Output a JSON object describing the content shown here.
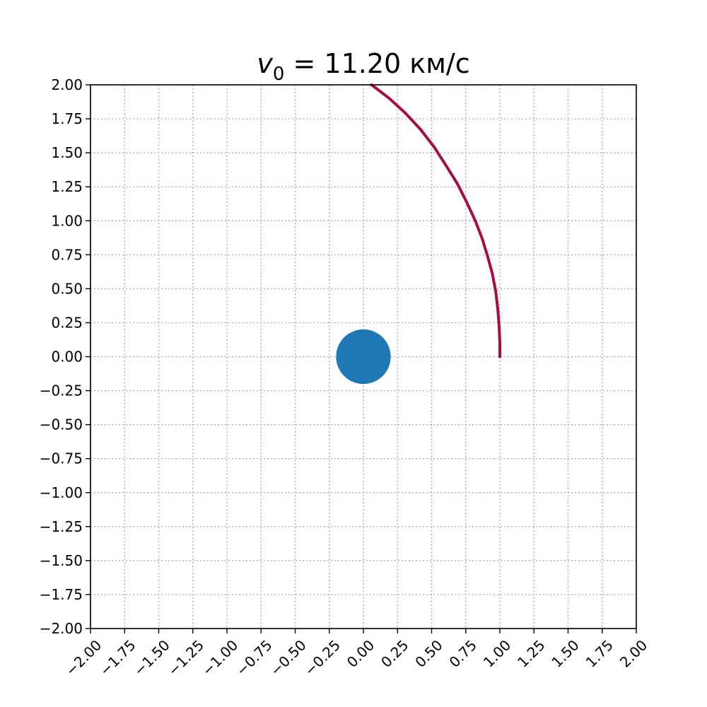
{
  "chart_data": {
    "type": "scatter",
    "title": {
      "symbol": "v",
      "subscript": "0",
      "rest": " = 11.20 км/с"
    },
    "xlabel": "",
    "ylabel": "",
    "xlim": [
      -2.0,
      2.0
    ],
    "ylim": [
      -2.0,
      2.0
    ],
    "xticks": [
      "−2.00",
      "−1.75",
      "−1.50",
      "−1.25",
      "−1.00",
      "−0.75",
      "−0.50",
      "−0.25",
      "0.00",
      "0.25",
      "0.50",
      "0.75",
      "1.00",
      "1.25",
      "1.50",
      "1.75",
      "2.00"
    ],
    "yticks": [
      "2.00",
      "1.75",
      "1.50",
      "1.25",
      "1.00",
      "0.75",
      "0.50",
      "0.25",
      "0.00",
      "−0.25",
      "−0.50",
      "−0.75",
      "−1.00",
      "−1.25",
      "−1.50",
      "−1.75",
      "−2.00"
    ],
    "grid": true,
    "planet": {
      "x": 0.0,
      "y": 0.0,
      "radius": 0.2,
      "color": "#1f77b4"
    },
    "series": [
      {
        "color": "#a50f3c",
        "x": [
          1.0,
          1.0,
          0.995,
          0.985,
          0.97,
          0.945,
          0.91,
          0.87,
          0.82,
          0.76,
          0.69,
          0.61,
          0.52,
          0.42,
          0.31,
          0.19,
          0.06
        ],
        "y": [
          0.0,
          0.1,
          0.22,
          0.35,
          0.48,
          0.61,
          0.74,
          0.87,
          1.0,
          1.13,
          1.27,
          1.4,
          1.54,
          1.67,
          1.79,
          1.9,
          2.0
        ]
      }
    ]
  }
}
